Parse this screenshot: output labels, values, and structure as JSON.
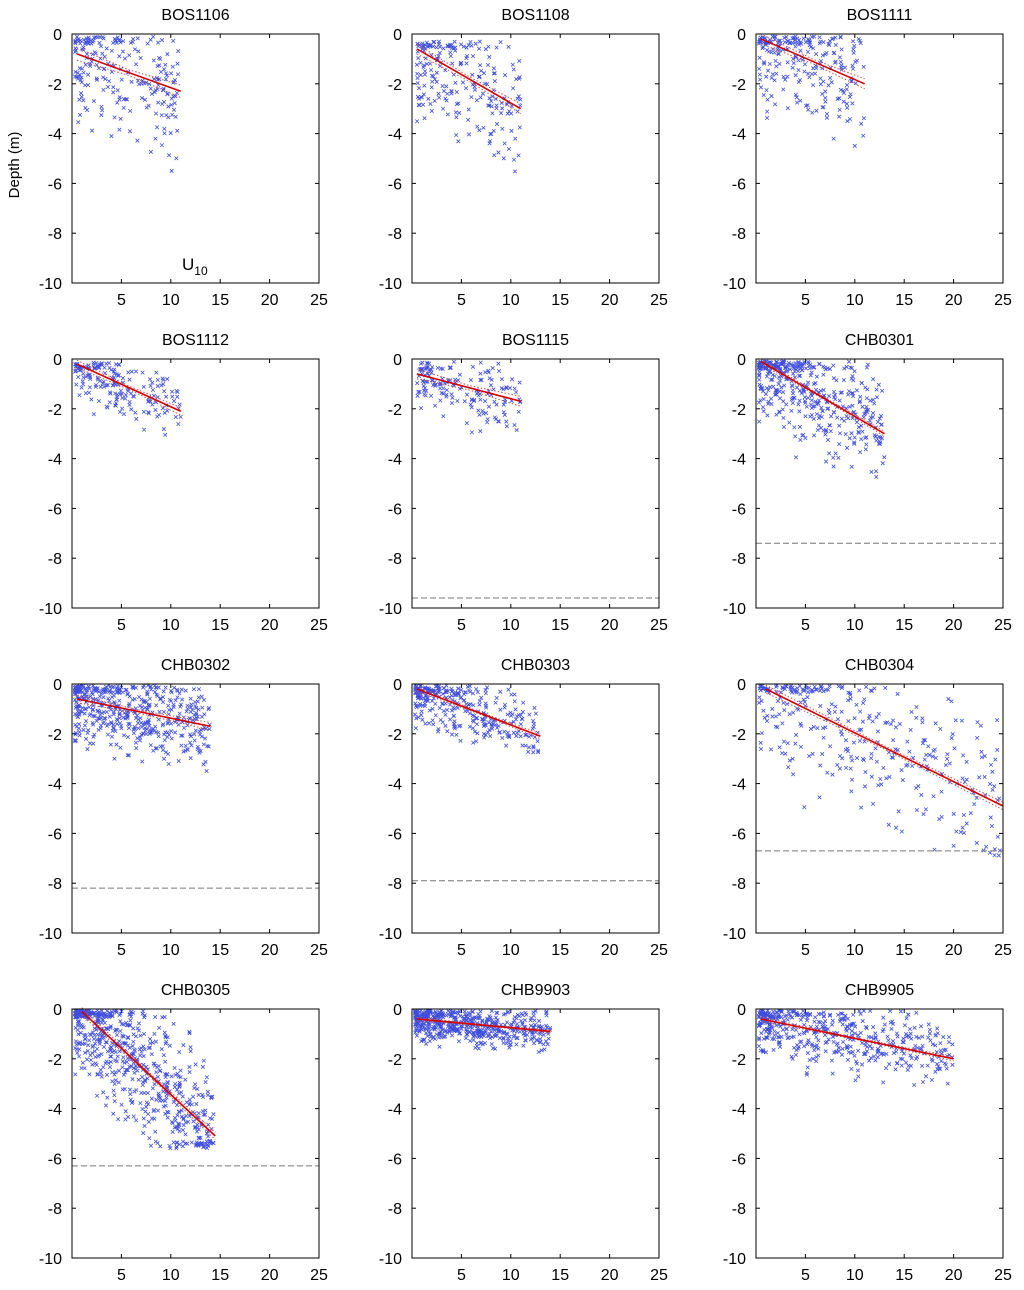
{
  "figure": {
    "ylabel": "Depth (m)",
    "xlabel_main": "U",
    "xlabel_sub": "10"
  },
  "style": {
    "scatter_color": "#1f2fd6",
    "fit_color": "#d40000",
    "ci_color": "#c05050",
    "limit_line_color": "#777777",
    "axis_color": "#000000"
  },
  "chart_data": [
    {
      "type": "scatter",
      "title": "BOS1106",
      "xlim": [
        0,
        25
      ],
      "ylim": [
        -10,
        0
      ],
      "xticks": [
        5,
        10,
        15,
        20,
        25
      ],
      "yticks": [
        0,
        -2,
        -4,
        -6,
        -8,
        -10
      ],
      "fit": {
        "x": [
          0.5,
          11
        ],
        "y": [
          -0.8,
          -2.3
        ]
      },
      "ci_halfwidth": 0.25,
      "limit_depth": null,
      "cloud": {
        "x_range": [
          0.3,
          11
        ],
        "y_top": -0.1,
        "y_bottom": -5.6,
        "n": 220
      }
    },
    {
      "type": "scatter",
      "title": "BOS1108",
      "xlim": [
        0,
        25
      ],
      "ylim": [
        -10,
        0
      ],
      "xticks": [
        5,
        10,
        15,
        20,
        25
      ],
      "yticks": [
        0,
        -2,
        -4,
        -6,
        -8,
        -10
      ],
      "fit": {
        "x": [
          0.5,
          11
        ],
        "y": [
          -0.6,
          -3.0
        ]
      },
      "ci_halfwidth": 0.2,
      "limit_depth": null,
      "cloud": {
        "x_range": [
          0.5,
          11
        ],
        "y_top": -0.3,
        "y_bottom": -6.0,
        "n": 220
      }
    },
    {
      "type": "scatter",
      "title": "BOS1111",
      "xlim": [
        0,
        25
      ],
      "ylim": [
        -10,
        0
      ],
      "xticks": [
        5,
        10,
        15,
        20,
        25
      ],
      "yticks": [
        0,
        -2,
        -4,
        -6,
        -8,
        -10
      ],
      "fit": {
        "x": [
          0.5,
          11
        ],
        "y": [
          -0.2,
          -2.0
        ]
      },
      "ci_halfwidth": 0.2,
      "limit_depth": null,
      "cloud": {
        "x_range": [
          0.3,
          11
        ],
        "y_top": -0.1,
        "y_bottom": -5.7,
        "n": 230
      }
    },
    {
      "type": "scatter",
      "title": "BOS1112",
      "xlim": [
        0,
        25
      ],
      "ylim": [
        -10,
        0
      ],
      "xticks": [
        5,
        10,
        15,
        20,
        25
      ],
      "yticks": [
        0,
        -2,
        -4,
        -6,
        -8,
        -10
      ],
      "fit": {
        "x": [
          0.5,
          11
        ],
        "y": [
          -0.2,
          -2.1
        ]
      },
      "ci_halfwidth": 0.15,
      "limit_depth": null,
      "cloud": {
        "x_range": [
          0.3,
          11
        ],
        "y_top": -0.1,
        "y_bottom": -3.3,
        "n": 180
      }
    },
    {
      "type": "scatter",
      "title": "BOS1115",
      "xlim": [
        0,
        25
      ],
      "ylim": [
        -10,
        0
      ],
      "xticks": [
        5,
        10,
        15,
        20,
        25
      ],
      "yticks": [
        0,
        -2,
        -4,
        -6,
        -8,
        -10
      ],
      "fit": {
        "x": [
          0.5,
          11
        ],
        "y": [
          -0.6,
          -1.7
        ]
      },
      "ci_halfwidth": 0.2,
      "limit_depth": -9.6,
      "cloud": {
        "x_range": [
          0.5,
          11
        ],
        "y_top": -0.1,
        "y_bottom": -3.2,
        "n": 160
      }
    },
    {
      "type": "scatter",
      "title": "CHB0301",
      "xlim": [
        0,
        25
      ],
      "ylim": [
        -10,
        0
      ],
      "xticks": [
        5,
        10,
        15,
        20,
        25
      ],
      "yticks": [
        0,
        -2,
        -4,
        -6,
        -8,
        -10
      ],
      "fit": {
        "x": [
          0.5,
          13
        ],
        "y": [
          -0.1,
          -3.0
        ]
      },
      "ci_halfwidth": 0.1,
      "limit_depth": -7.4,
      "cloud": {
        "x_range": [
          0.3,
          13
        ],
        "y_top": -0.1,
        "y_bottom": -4.8,
        "n": 420
      }
    },
    {
      "type": "scatter",
      "title": "CHB0302",
      "xlim": [
        0,
        25
      ],
      "ylim": [
        -10,
        0
      ],
      "xticks": [
        5,
        10,
        15,
        20,
        25
      ],
      "yticks": [
        0,
        -2,
        -4,
        -6,
        -8,
        -10
      ],
      "fit": {
        "x": [
          0.5,
          14
        ],
        "y": [
          -0.6,
          -1.7
        ]
      },
      "ci_halfwidth": 0.15,
      "limit_depth": -8.2,
      "cloud": {
        "x_range": [
          0.3,
          14
        ],
        "y_top": -0.05,
        "y_bottom": -3.8,
        "n": 480
      }
    },
    {
      "type": "scatter",
      "title": "CHB0303",
      "xlim": [
        0,
        25
      ],
      "ylim": [
        -10,
        0
      ],
      "xticks": [
        5,
        10,
        15,
        20,
        25
      ],
      "yticks": [
        0,
        -2,
        -4,
        -6,
        -8,
        -10
      ],
      "fit": {
        "x": [
          0.5,
          13
        ],
        "y": [
          -0.2,
          -2.1
        ]
      },
      "ci_halfwidth": 0.1,
      "limit_depth": -7.9,
      "cloud": {
        "x_range": [
          0.3,
          13
        ],
        "y_top": -0.05,
        "y_bottom": -2.8,
        "n": 300
      }
    },
    {
      "type": "scatter",
      "title": "CHB0304",
      "xlim": [
        0,
        25
      ],
      "ylim": [
        -10,
        0
      ],
      "xticks": [
        5,
        10,
        15,
        20,
        25
      ],
      "yticks": [
        0,
        -2,
        -4,
        -6,
        -8,
        -10
      ],
      "fit": {
        "x": [
          1,
          25
        ],
        "y": [
          -0.2,
          -4.9
        ]
      },
      "ci_halfwidth": 0.15,
      "limit_depth": -6.7,
      "cloud": {
        "x_range": [
          0.3,
          25
        ],
        "y_top": -0.05,
        "y_bottom": -6.9,
        "n": 320
      }
    },
    {
      "type": "scatter",
      "title": "CHB0305",
      "xlim": [
        0,
        25
      ],
      "ylim": [
        -10,
        0
      ],
      "xticks": [
        5,
        10,
        15,
        20,
        25
      ],
      "yticks": [
        0,
        -2,
        -4,
        -6,
        -8,
        -10
      ],
      "fit": {
        "x": [
          1,
          14.5
        ],
        "y": [
          -0.1,
          -5.1
        ]
      },
      "ci_halfwidth": 0.15,
      "limit_depth": -6.3,
      "cloud": {
        "x_range": [
          0.3,
          14.5
        ],
        "y_top": -0.05,
        "y_bottom": -5.6,
        "n": 620
      }
    },
    {
      "type": "scatter",
      "title": "CHB9903",
      "xlim": [
        0,
        25
      ],
      "ylim": [
        -10,
        0
      ],
      "xticks": [
        5,
        10,
        15,
        20,
        25
      ],
      "yticks": [
        0,
        -2,
        -4,
        -6,
        -8,
        -10
      ],
      "fit": {
        "x": [
          0.5,
          14
        ],
        "y": [
          -0.4,
          -0.9
        ]
      },
      "ci_halfwidth": 0.06,
      "limit_depth": null,
      "cloud": {
        "x_range": [
          0.3,
          14
        ],
        "y_top": -0.05,
        "y_bottom": -1.8,
        "n": 520
      }
    },
    {
      "type": "scatter",
      "title": "CHB9905",
      "xlim": [
        0,
        25
      ],
      "ylim": [
        -10,
        0
      ],
      "xticks": [
        5,
        10,
        15,
        20,
        25
      ],
      "yticks": [
        0,
        -2,
        -4,
        -6,
        -8,
        -10
      ],
      "fit": {
        "x": [
          0.5,
          20
        ],
        "y": [
          -0.4,
          -2.0
        ]
      },
      "ci_halfwidth": 0.08,
      "limit_depth": null,
      "cloud": {
        "x_range": [
          0.3,
          20
        ],
        "y_top": -0.05,
        "y_bottom": -3.1,
        "n": 460
      }
    }
  ]
}
